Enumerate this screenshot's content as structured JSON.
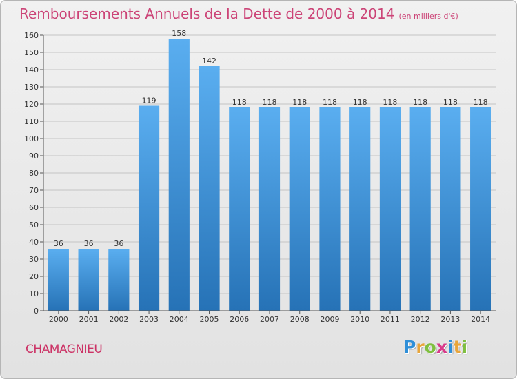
{
  "header": {
    "title": "Remboursements Annuels de la Dette de 2000 à 2014",
    "unit": "(en milliers d'€)"
  },
  "footer": {
    "commune": "CHAMAGNIEU",
    "logo_letters": [
      "P",
      "r",
      "o",
      "x",
      "i",
      "t",
      "i"
    ],
    "logo_colors": [
      "#2f8fd8",
      "#e8a53a",
      "#7fbf3f",
      "#d83a8a",
      "#2f8fd8",
      "#e8a53a",
      "#7fbf3f"
    ]
  },
  "colors": {
    "bar_light": "#5aaef0",
    "bar_dark": "#2672b6",
    "grid": "#c4c4c4",
    "title": "#cc4477"
  },
  "chart_data": {
    "type": "bar",
    "title": "Remboursements Annuels de la Dette de 2000 à 2014",
    "subtitle": "(en milliers d'€)",
    "categories": [
      "2000",
      "2001",
      "2002",
      "2003",
      "2004",
      "2005",
      "2006",
      "2007",
      "2008",
      "2009",
      "2010",
      "2011",
      "2012",
      "2013",
      "2014"
    ],
    "values": [
      36,
      36,
      36,
      119,
      158,
      142,
      118,
      118,
      118,
      118,
      118,
      118,
      118,
      118,
      118
    ],
    "ylim": [
      0,
      160
    ],
    "yticks": [
      0,
      10,
      20,
      30,
      40,
      50,
      60,
      70,
      80,
      90,
      100,
      110,
      120,
      130,
      140,
      150,
      160
    ],
    "grid": true,
    "xlabel": "",
    "ylabel": ""
  }
}
